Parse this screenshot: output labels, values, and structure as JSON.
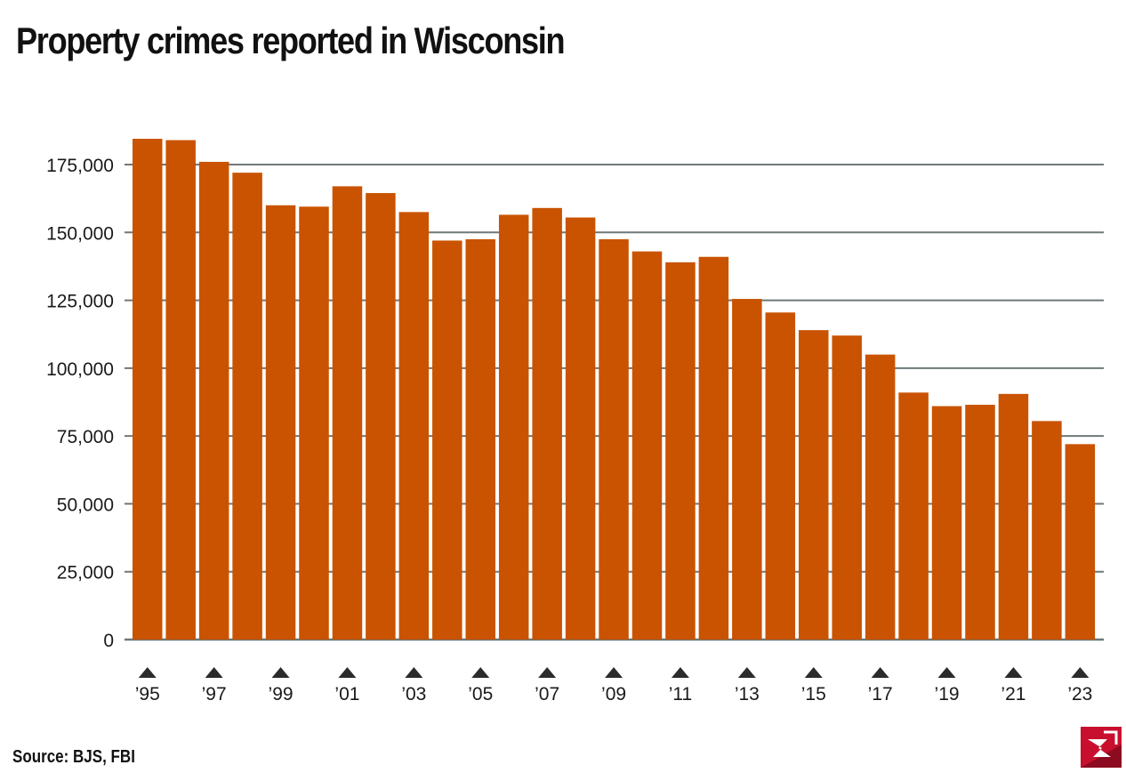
{
  "title": "Property crimes reported in Wisconsin",
  "source": "Source: BJS, FBI",
  "colors": {
    "bar": "#c95300",
    "grid": "#6e7879",
    "marker": "#2b2b2b",
    "logo": "#c8102e"
  },
  "chart_data": {
    "type": "bar",
    "title": "Property crimes reported in Wisconsin",
    "xlabel": "",
    "ylabel": "",
    "ylim": [
      0,
      175000
    ],
    "yticks": [
      0,
      25000,
      50000,
      75000,
      100000,
      125000,
      150000,
      175000
    ],
    "ytick_labels": [
      "0",
      "25,000",
      "50,000",
      "75,000",
      "100,000",
      "125,000",
      "150,000",
      "175,000"
    ],
    "grid": true,
    "categories": [
      "1995",
      "1996",
      "1997",
      "1998",
      "1999",
      "2000",
      "2001",
      "2002",
      "2003",
      "2004",
      "2005",
      "2006",
      "2007",
      "2008",
      "2009",
      "2010",
      "2011",
      "2012",
      "2013",
      "2014",
      "2015",
      "2016",
      "2017",
      "2018",
      "2019",
      "2020",
      "2021",
      "2022",
      "2023"
    ],
    "values": [
      184500,
      184000,
      176000,
      172000,
      160000,
      159500,
      167000,
      164500,
      157500,
      147000,
      147500,
      156500,
      159000,
      155500,
      147500,
      143000,
      139000,
      141000,
      125500,
      120500,
      114000,
      112000,
      105000,
      91000,
      86000,
      86500,
      90500,
      80500,
      72000
    ],
    "xtick_labels": [
      "’95",
      "’97",
      "’99",
      "’01",
      "’03",
      "’05",
      "’07",
      "’09",
      "’11",
      "’13",
      "’15",
      "’17",
      "’19",
      "’21",
      "’23"
    ],
    "xtick_index": [
      0,
      2,
      4,
      6,
      8,
      10,
      12,
      14,
      16,
      18,
      20,
      22,
      24,
      26,
      28
    ]
  }
}
